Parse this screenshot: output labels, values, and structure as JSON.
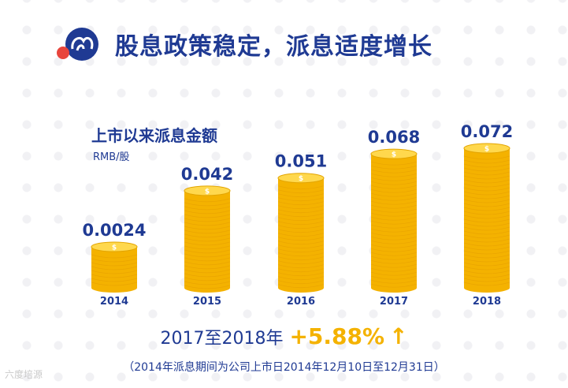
{
  "header": {
    "title": "股息政策稳定，派息适度增长"
  },
  "chart_data": {
    "type": "bar",
    "title": "上市以来派息金额",
    "unit": "RMB/股",
    "categories": [
      "2014",
      "2015",
      "2016",
      "2017",
      "2018"
    ],
    "values": [
      0.0024,
      0.042,
      0.051,
      0.068,
      0.072
    ],
    "value_labels": [
      "0.0024",
      "0.042",
      "0.051",
      "0.068",
      "0.072"
    ],
    "bar_color": "#f4b200",
    "text_color": "#1f3a93"
  },
  "summary": {
    "range_label": "2017至2018年",
    "growth": "+5.88%",
    "arrow": "↑"
  },
  "footnote": "（2014年派息期间为公司上市日2014年12月10日至12月31日）",
  "watermark": "六度培源",
  "colors": {
    "primary": "#1f3a93",
    "accent": "#f4b200",
    "logo_red": "#e8453c"
  }
}
